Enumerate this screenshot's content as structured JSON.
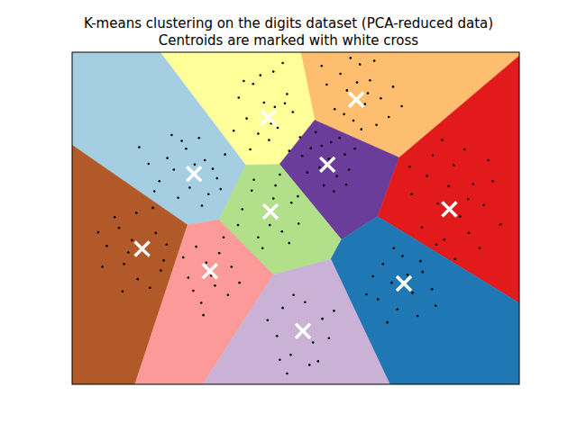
{
  "chart_data": {
    "type": "scatter",
    "title": "K-means clustering on the digits dataset (PCA-reduced data)",
    "subtitle": "Centroids are marked with white cross",
    "xlim": [
      -31,
      31
    ],
    "ylim": [
      -23,
      23.1
    ],
    "tick_labels": false,
    "color": "#000000",
    "x": [
      6.2,
      8.9,
      10.3,
      7.1,
      9.6,
      11.8,
      5.4,
      8.0,
      12.9,
      4.3,
      10.9,
      7.6,
      13.5,
      9.1,
      6.7,
      11.2,
      3.6,
      14.7,
      8.5,
      10.0,
      -5.9,
      -3.1,
      -1.2,
      -4.4,
      -6.8,
      -2.5,
      -0.4,
      -3.7,
      -7.9,
      -1.8,
      -5.2,
      -8.6,
      -2.9,
      0.6,
      -4.9,
      -6.3,
      -0.9,
      -3.4,
      -7.2,
      -1.5,
      -17.8,
      -15.2,
      -12.6,
      -10.9,
      -14.7,
      -18.9,
      -16.3,
      -12.1,
      -20.4,
      -13.4,
      -9.8,
      -16.9,
      -11.5,
      -19.6,
      -14.0,
      -15.8,
      -10.4,
      -21.7,
      -13.0,
      -17.2,
      2.1,
      4.9,
      6.8,
      3.3,
      5.7,
      1.6,
      7.4,
      3.9,
      6.1,
      2.8,
      8.2,
      4.6,
      0.9,
      5.3,
      7.0,
      3.6,
      18.2,
      21.9,
      24.6,
      19.7,
      22.8,
      26.1,
      17.5,
      20.6,
      24.0,
      27.3,
      16.1,
      23.4,
      19.0,
      25.5,
      21.2,
      28.4,
      15.8,
      22.1,
      19.5,
      26.7,
      20.3,
      23.9,
      -6.1,
      -2.8,
      -0.6,
      -4.3,
      -7.4,
      -1.9,
      -5.2,
      0.4,
      -3.1,
      -8.0,
      -2.2,
      -5.8,
      -0.9,
      -4.6,
      0.3,
      -3.6,
      -24.5,
      -22.1,
      -19.4,
      -20.6,
      -23.8,
      -26.2,
      -18.7,
      -21.9,
      -25.1,
      -17.9,
      -22.7,
      -27.4,
      -20.2,
      -24.0,
      -19.8,
      -23.2,
      -18.3,
      -26.8,
      -13.8,
      -10.6,
      -8.9,
      -12.4,
      -14.9,
      -11.2,
      -9.4,
      -13.1,
      -15.6,
      -10.0,
      -12.8,
      -7.8,
      -11.7,
      -14.2,
      12.1,
      14.8,
      17.6,
      13.3,
      16.2,
      11.4,
      18.9,
      14.1,
      10.7,
      16.9,
      13.6,
      19.4,
      15.5,
      12.7,
      17.3,
      9.8,
      -1.8,
      1.3,
      3.7,
      0.2,
      -2.6,
      2.4,
      -0.7,
      4.6,
      -3.9,
      1.9,
      -1.2,
      3.1,
      0.8,
      -2.2,
      5.3,
      -0.3
    ],
    "y": [
      20.1,
      21.4,
      19.2,
      17.8,
      15.9,
      16.7,
      15.2,
      13.6,
      14.1,
      18.6,
      21.9,
      22.3,
      18.3,
      12.4,
      14.5,
      13.0,
      21.2,
      15.6,
      18.9,
      17.4,
      18.7,
      20.4,
      17.3,
      16.1,
      13.9,
      12.6,
      14.8,
      10.9,
      16.8,
      21.6,
      11.8,
      12.2,
      15.5,
      11.3,
      19.9,
      9.6,
      9.4,
      13.2,
      19.1,
      16.0,
      8.4,
      9.7,
      8.1,
      5.6,
      4.3,
      5.2,
      2.9,
      3.4,
      7.6,
      11.2,
      8.9,
      6.8,
      6.9,
      3.8,
      7.5,
      10.8,
      4.1,
      9.9,
      1.8,
      11.6,
      9.8,
      10.6,
      8.9,
      7.1,
      5.9,
      6.4,
      6.8,
      4.6,
      11.2,
      12.0,
      9.7,
      8.3,
      8.7,
      3.8,
      4.7,
      10.1,
      5.9,
      7.4,
      4.8,
      2.1,
      0.3,
      1.9,
      -1.2,
      -2.9,
      -2.0,
      5.2,
      3.4,
      9.6,
      8.8,
      -4.1,
      4.5,
      -0.8,
      7.2,
      -5.6,
      -3.6,
      8.1,
      10.9,
      2.7,
      3.9,
      4.6,
      2.2,
      0.1,
      1.3,
      -1.8,
      -2.6,
      -0.7,
      2.8,
      -0.9,
      6.1,
      5.4,
      -3.4,
      -4.1,
      3.1,
      -0.9,
      -1.3,
      0.8,
      -2.0,
      -5.1,
      -6.3,
      -3.8,
      -7.2,
      -8.4,
      0.2,
      -3.6,
      -3.0,
      -1.9,
      -9.6,
      -10.1,
      1.5,
      -4.7,
      -5.8,
      -6.7,
      -3.9,
      -4.8,
      -6.7,
      -6.1,
      -8.2,
      -9.3,
      -10.6,
      -11.7,
      -5.4,
      -2.6,
      -13.4,
      -8.9,
      -7.9,
      -10.0,
      -6.3,
      -5.2,
      -7.4,
      -8.9,
      -10.3,
      -11.2,
      -9.8,
      -12.6,
      -8.0,
      -13.5,
      -4.1,
      -12.1,
      -7.8,
      -14.4,
      -5.9,
      -10.5,
      -12.4,
      -11.6,
      -13.9,
      -14.8,
      -16.3,
      -17.2,
      -18.9,
      -16.6,
      -14.1,
      -20.3,
      -21.5,
      -19.8,
      -15.9,
      -19.6,
      -12.8,
      -10.6
    ],
    "centroids": {
      "x": [
        8.4,
        -3.8,
        -14.1,
        4.4,
        21.3,
        -3.5,
        -21.3,
        -11.9,
        15.0,
        1.0
      ],
      "y": [
        16.5,
        14.0,
        6.2,
        7.5,
        1.3,
        1.0,
        -4.2,
        -7.3,
        -9.0,
        -15.6
      ],
      "marker": "x",
      "color": "#ffffff"
    },
    "regions": {
      "colors": [
        "#fdbf6f",
        "#ffff99",
        "#a6cee3",
        "#6a3d9a",
        "#e31a1c",
        "#b2df8a",
        "#b15928",
        "#fb9a99",
        "#1f78b4",
        "#cab2d6"
      ]
    }
  }
}
